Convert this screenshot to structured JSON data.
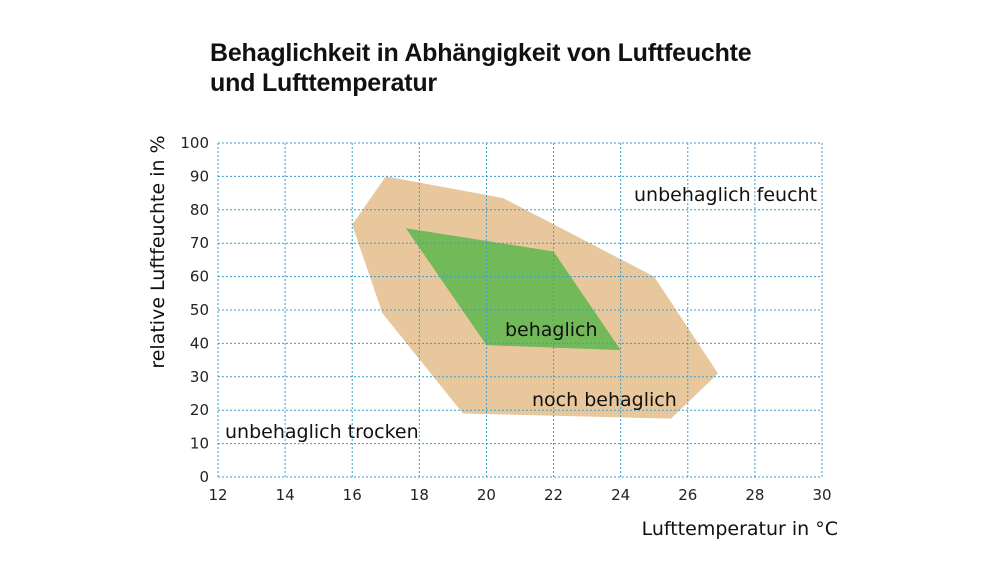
{
  "chart_data": {
    "type": "area",
    "title_line1": "Behaglichkeit in Abhängigkeit von Luftfeuchte",
    "title_line2": "und Lufttemperatur",
    "xlabel": "Lufttemperatur in °C",
    "ylabel": "relative Luftfeuchte in %",
    "xlim": [
      12,
      30
    ],
    "ylim": [
      0,
      100
    ],
    "xticks": [
      12,
      14,
      16,
      18,
      20,
      22,
      24,
      26,
      28,
      30
    ],
    "yticks": [
      0,
      10,
      20,
      30,
      40,
      50,
      60,
      70,
      80,
      90,
      100
    ],
    "grid": true,
    "colors": {
      "noch_behaglich": "#e8c79c",
      "behaglich": "#72b95a",
      "grid": "#3a9fd0"
    },
    "regions": [
      {
        "label": "noch behaglich",
        "points": [
          [
            17,
            90
          ],
          [
            20.5,
            83.5
          ],
          [
            25,
            60
          ],
          [
            26.9,
            31
          ],
          [
            25.5,
            17.5
          ],
          [
            19.3,
            19
          ],
          [
            16.9,
            49
          ],
          [
            16,
            75.5
          ]
        ]
      },
      {
        "label": "behaglich",
        "points": [
          [
            17.6,
            74.5
          ],
          [
            22,
            67.5
          ],
          [
            24,
            38
          ],
          [
            20,
            39.5
          ]
        ]
      }
    ],
    "annotations": {
      "feucht": "unbehaglich feucht",
      "behaglich": "behaglich",
      "noch": "noch behaglich",
      "trocken": "unbehaglich trocken"
    }
  }
}
